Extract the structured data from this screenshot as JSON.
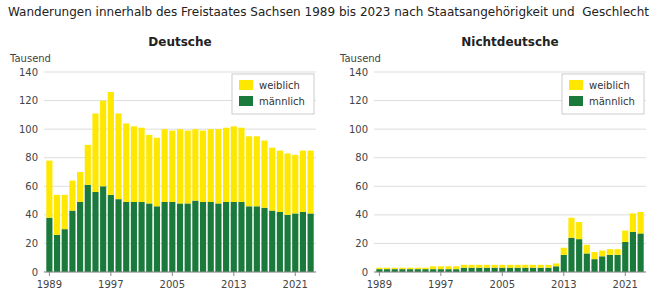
{
  "title": "Wanderungen innerhalb des Freistaates Sachsen 1989 bis 2023 nach Staatsangehörigkeit und  Geschlecht",
  "chart_data": [
    {
      "type": "bar",
      "stacked": true,
      "title": "Deutsche",
      "ylabel": "Tausend",
      "x": [
        1989,
        1990,
        1991,
        1992,
        1993,
        1994,
        1995,
        1996,
        1997,
        1998,
        1999,
        2000,
        2001,
        2002,
        2003,
        2004,
        2005,
        2006,
        2007,
        2008,
        2009,
        2010,
        2011,
        2012,
        2013,
        2014,
        2015,
        2016,
        2017,
        2018,
        2019,
        2020,
        2021,
        2022,
        2023
      ],
      "series": [
        {
          "name": "männlich",
          "color": "#1A7A3C",
          "values": [
            38,
            26,
            30,
            43,
            49,
            61,
            56,
            60,
            54,
            51,
            49,
            49,
            49,
            48,
            46,
            49,
            49,
            48,
            48,
            50,
            49,
            49,
            48,
            49,
            49,
            49,
            46,
            46,
            45,
            43,
            42,
            40,
            41,
            42,
            41
          ]
        },
        {
          "name": "weiblich",
          "color": "#FFE800",
          "values": [
            40,
            28,
            24,
            21,
            21,
            28,
            55,
            60,
            72,
            60,
            55,
            53,
            52,
            48,
            48,
            51,
            50,
            52,
            51,
            50,
            50,
            51,
            52,
            52,
            53,
            52,
            49,
            49,
            47,
            44,
            43,
            43,
            41,
            43,
            44
          ]
        }
      ],
      "xlim": [
        1988.3,
        2023.7
      ],
      "xticks": [
        1989,
        1997,
        2005,
        2013,
        2021
      ],
      "ylim": [
        0,
        140
      ],
      "yticks": [
        0,
        20,
        40,
        60,
        80,
        100,
        120,
        140
      ],
      "grid": true,
      "legend": "upper right"
    },
    {
      "type": "bar",
      "stacked": true,
      "title": "Nichtdeutsche",
      "ylabel": "Tausend",
      "x": [
        1989,
        1990,
        1991,
        1992,
        1993,
        1994,
        1995,
        1996,
        1997,
        1998,
        1999,
        2000,
        2001,
        2002,
        2003,
        2004,
        2005,
        2006,
        2007,
        2008,
        2009,
        2010,
        2011,
        2012,
        2013,
        2014,
        2015,
        2016,
        2017,
        2018,
        2019,
        2020,
        2021,
        2022,
        2023
      ],
      "series": [
        {
          "name": "männlich",
          "color": "#1A7A3C",
          "values": [
            2,
            2,
            2,
            2,
            2,
            2,
            2,
            2,
            2,
            2,
            2,
            3,
            3,
            3,
            3,
            3,
            3,
            3,
            3,
            3,
            3,
            3,
            3,
            4,
            12,
            24,
            23,
            13,
            9,
            11,
            12,
            12,
            21,
            28,
            27
          ]
        },
        {
          "name": "weiblich",
          "color": "#FFE800",
          "values": [
            1,
            1,
            1,
            1,
            1,
            1,
            1,
            2,
            2,
            2,
            2,
            2,
            2,
            2,
            2,
            2,
            2,
            2,
            2,
            2,
            2,
            2,
            2,
            2,
            5,
            14,
            12,
            6,
            5,
            4,
            4,
            4,
            8,
            13,
            15
          ]
        }
      ],
      "xlim": [
        1988.3,
        2023.7
      ],
      "xticks": [
        1989,
        1997,
        2005,
        2013,
        2021
      ],
      "ylim": [
        0,
        140
      ],
      "yticks": [
        0,
        20,
        40,
        60,
        80,
        100,
        120,
        140
      ],
      "grid": true,
      "legend": "upper right"
    }
  ]
}
